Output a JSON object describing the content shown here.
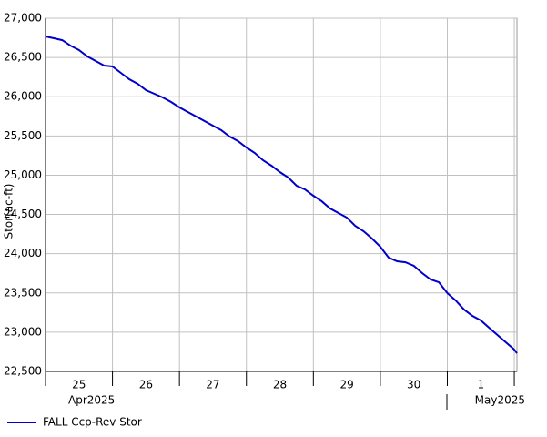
{
  "chart_data": {
    "type": "line",
    "y_label": "Stor(ac-ft)",
    "day_labels": [
      "25",
      "26",
      "27",
      "28",
      "29",
      "30",
      "1"
    ],
    "month_labels": [
      "Apr2025",
      "May2025"
    ],
    "x": [
      0,
      0.125,
      0.25,
      0.375,
      0.5,
      0.625,
      0.75,
      0.875,
      1,
      1.125,
      1.25,
      1.375,
      1.5,
      1.625,
      1.75,
      1.875,
      2,
      2.125,
      2.25,
      2.375,
      2.5,
      2.625,
      2.75,
      2.875,
      3,
      3.125,
      3.25,
      3.375,
      3.5,
      3.625,
      3.75,
      3.875,
      4,
      4.125,
      4.25,
      4.375,
      4.5,
      4.625,
      4.75,
      4.875,
      5,
      5.125,
      5.25,
      5.375,
      5.5,
      5.625,
      5.75,
      5.875,
      6,
      6.125,
      6.25,
      6.375,
      6.5,
      6.625,
      6.75,
      6.875,
      7,
      7.04
    ],
    "series": [
      {
        "name": "FALL Ccp-Rev Stor",
        "color": "#0000cc",
        "values": [
          26768,
          26745,
          26720,
          26650,
          26594,
          26513,
          26455,
          26397,
          26385,
          26304,
          26223,
          26165,
          26084,
          26037,
          25991,
          25933,
          25863,
          25805,
          25747,
          25689,
          25631,
          25573,
          25492,
          25434,
          25353,
          25283,
          25190,
          25121,
          25040,
          24970,
          24866,
          24819,
          24738,
          24668,
          24576,
          24518,
          24460,
          24355,
          24286,
          24193,
          24088,
          23949,
          23903,
          23891,
          23845,
          23752,
          23671,
          23636,
          23497,
          23404,
          23288,
          23207,
          23149,
          23056,
          22963,
          22870,
          22778,
          22731
        ]
      }
    ],
    "xlim": [
      0,
      7.04
    ],
    "xticks": [
      0,
      1,
      2,
      3,
      4,
      5,
      6,
      7
    ],
    "ylim": [
      22500,
      27000
    ],
    "yticks": [
      {
        "value": 22500,
        "label": "22,500"
      },
      {
        "value": 23000,
        "label": "23,000"
      },
      {
        "value": 23500,
        "label": "23,500"
      },
      {
        "value": 24000,
        "label": "24,000"
      },
      {
        "value": 24500,
        "label": "24,500"
      },
      {
        "value": 25000,
        "label": "25,000"
      },
      {
        "value": 25500,
        "label": "25,500"
      },
      {
        "value": 26000,
        "label": "26,000"
      },
      {
        "value": 26500,
        "label": "26,500"
      },
      {
        "value": 27000,
        "label": "27,000"
      }
    ],
    "grid": true
  }
}
